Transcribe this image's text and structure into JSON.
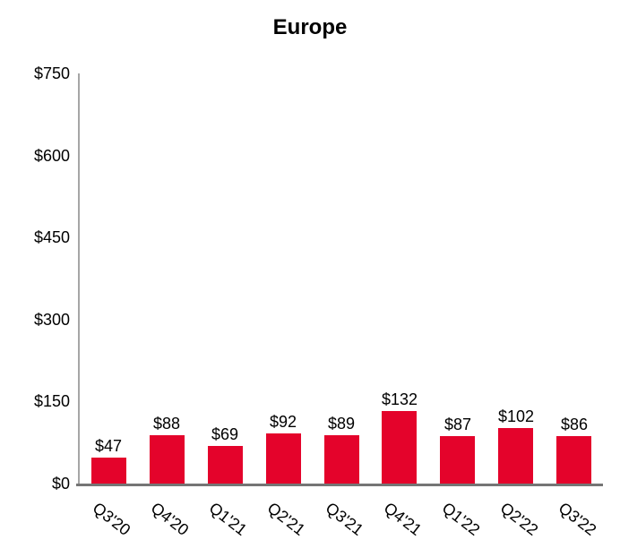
{
  "chart_data": {
    "type": "bar",
    "title": "Europe",
    "categories": [
      "Q3'20",
      "Q4'20",
      "Q1'21",
      "Q2'21",
      "Q3'21",
      "Q4'21",
      "Q1'22",
      "Q2'22",
      "Q3'22"
    ],
    "values": [
      47,
      88,
      69,
      92,
      89,
      132,
      87,
      102,
      86
    ],
    "data_labels": [
      "$47",
      "$88",
      "$69",
      "$92",
      "$89",
      "$132",
      "$87",
      "$102",
      "$86"
    ],
    "yticks": [
      {
        "value": 0,
        "label": "$0"
      },
      {
        "value": 150,
        "label": "$150"
      },
      {
        "value": 300,
        "label": "$300"
      },
      {
        "value": 450,
        "label": "$450"
      },
      {
        "value": 600,
        "label": "$600"
      },
      {
        "value": 750,
        "label": "$750"
      }
    ],
    "ylim": [
      0,
      750
    ],
    "xlabel": "",
    "ylabel": "",
    "grid": false,
    "legend": false,
    "x_label_rotation_deg": 38,
    "bar_color": "#E4032B",
    "x_axis_line_color": "#757575",
    "y_axis_line_color": "#A6A6A6",
    "text_color": "#000000",
    "background_color": "#FFFFFF"
  }
}
